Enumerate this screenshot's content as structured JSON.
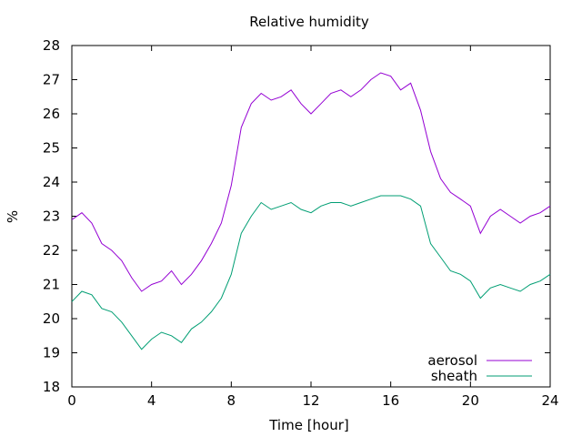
{
  "chart_data": {
    "type": "line",
    "title": "Relative humidity",
    "xlabel": "Time [hour]",
    "ylabel": "%",
    "xlim": [
      0,
      24
    ],
    "ylim": [
      18,
      28
    ],
    "xticks": [
      0,
      4,
      8,
      12,
      16,
      20,
      24
    ],
    "yticks": [
      18,
      19,
      20,
      21,
      22,
      23,
      24,
      25,
      26,
      27,
      28
    ],
    "grid": false,
    "legend_position": "bottom-right",
    "series": [
      {
        "name": "aerosol",
        "color": "#9400d3",
        "x": [
          0,
          0.5,
          1,
          1.5,
          2,
          2.5,
          3,
          3.5,
          4,
          4.5,
          5,
          5.5,
          6,
          6.5,
          7,
          7.5,
          8,
          8.5,
          9,
          9.5,
          10,
          10.5,
          11,
          11.5,
          12,
          12.5,
          13,
          13.5,
          14,
          14.5,
          15,
          15.5,
          16,
          16.5,
          17,
          17.5,
          18,
          18.5,
          19,
          19.5,
          20,
          20.5,
          21,
          21.5,
          22,
          22.5,
          23,
          23.5,
          24
        ],
        "y": [
          22.9,
          23.1,
          22.8,
          22.2,
          22.0,
          21.7,
          21.2,
          20.8,
          21.0,
          21.1,
          21.4,
          21.0,
          21.3,
          21.7,
          22.2,
          22.8,
          23.9,
          25.6,
          26.3,
          26.6,
          26.4,
          26.5,
          26.7,
          26.3,
          26.0,
          26.3,
          26.6,
          26.7,
          26.5,
          26.7,
          27.0,
          27.2,
          27.1,
          26.7,
          26.9,
          26.1,
          24.9,
          24.1,
          23.7,
          23.5,
          23.3,
          22.5,
          23.0,
          23.2,
          23.0,
          22.8,
          23.0,
          23.1,
          23.3
        ]
      },
      {
        "name": "sheath",
        "color": "#009e73",
        "x": [
          0,
          0.5,
          1,
          1.5,
          2,
          2.5,
          3,
          3.5,
          4,
          4.5,
          5,
          5.5,
          6,
          6.5,
          7,
          7.5,
          8,
          8.5,
          9,
          9.5,
          10,
          10.5,
          11,
          11.5,
          12,
          12.5,
          13,
          13.5,
          14,
          14.5,
          15,
          15.5,
          16,
          16.5,
          17,
          17.5,
          18,
          18.5,
          19,
          19.5,
          20,
          20.5,
          21,
          21.5,
          22,
          22.5,
          23,
          23.5,
          24
        ],
        "y": [
          20.5,
          20.8,
          20.7,
          20.3,
          20.2,
          19.9,
          19.5,
          19.1,
          19.4,
          19.6,
          19.5,
          19.3,
          19.7,
          19.9,
          20.2,
          20.6,
          21.3,
          22.5,
          23.0,
          23.4,
          23.2,
          23.3,
          23.4,
          23.2,
          23.1,
          23.3,
          23.4,
          23.4,
          23.3,
          23.4,
          23.5,
          23.6,
          23.6,
          23.6,
          23.5,
          23.3,
          22.2,
          21.8,
          21.4,
          21.3,
          21.1,
          20.6,
          20.9,
          21.0,
          20.9,
          20.8,
          21.0,
          21.1,
          21.3
        ]
      }
    ]
  }
}
